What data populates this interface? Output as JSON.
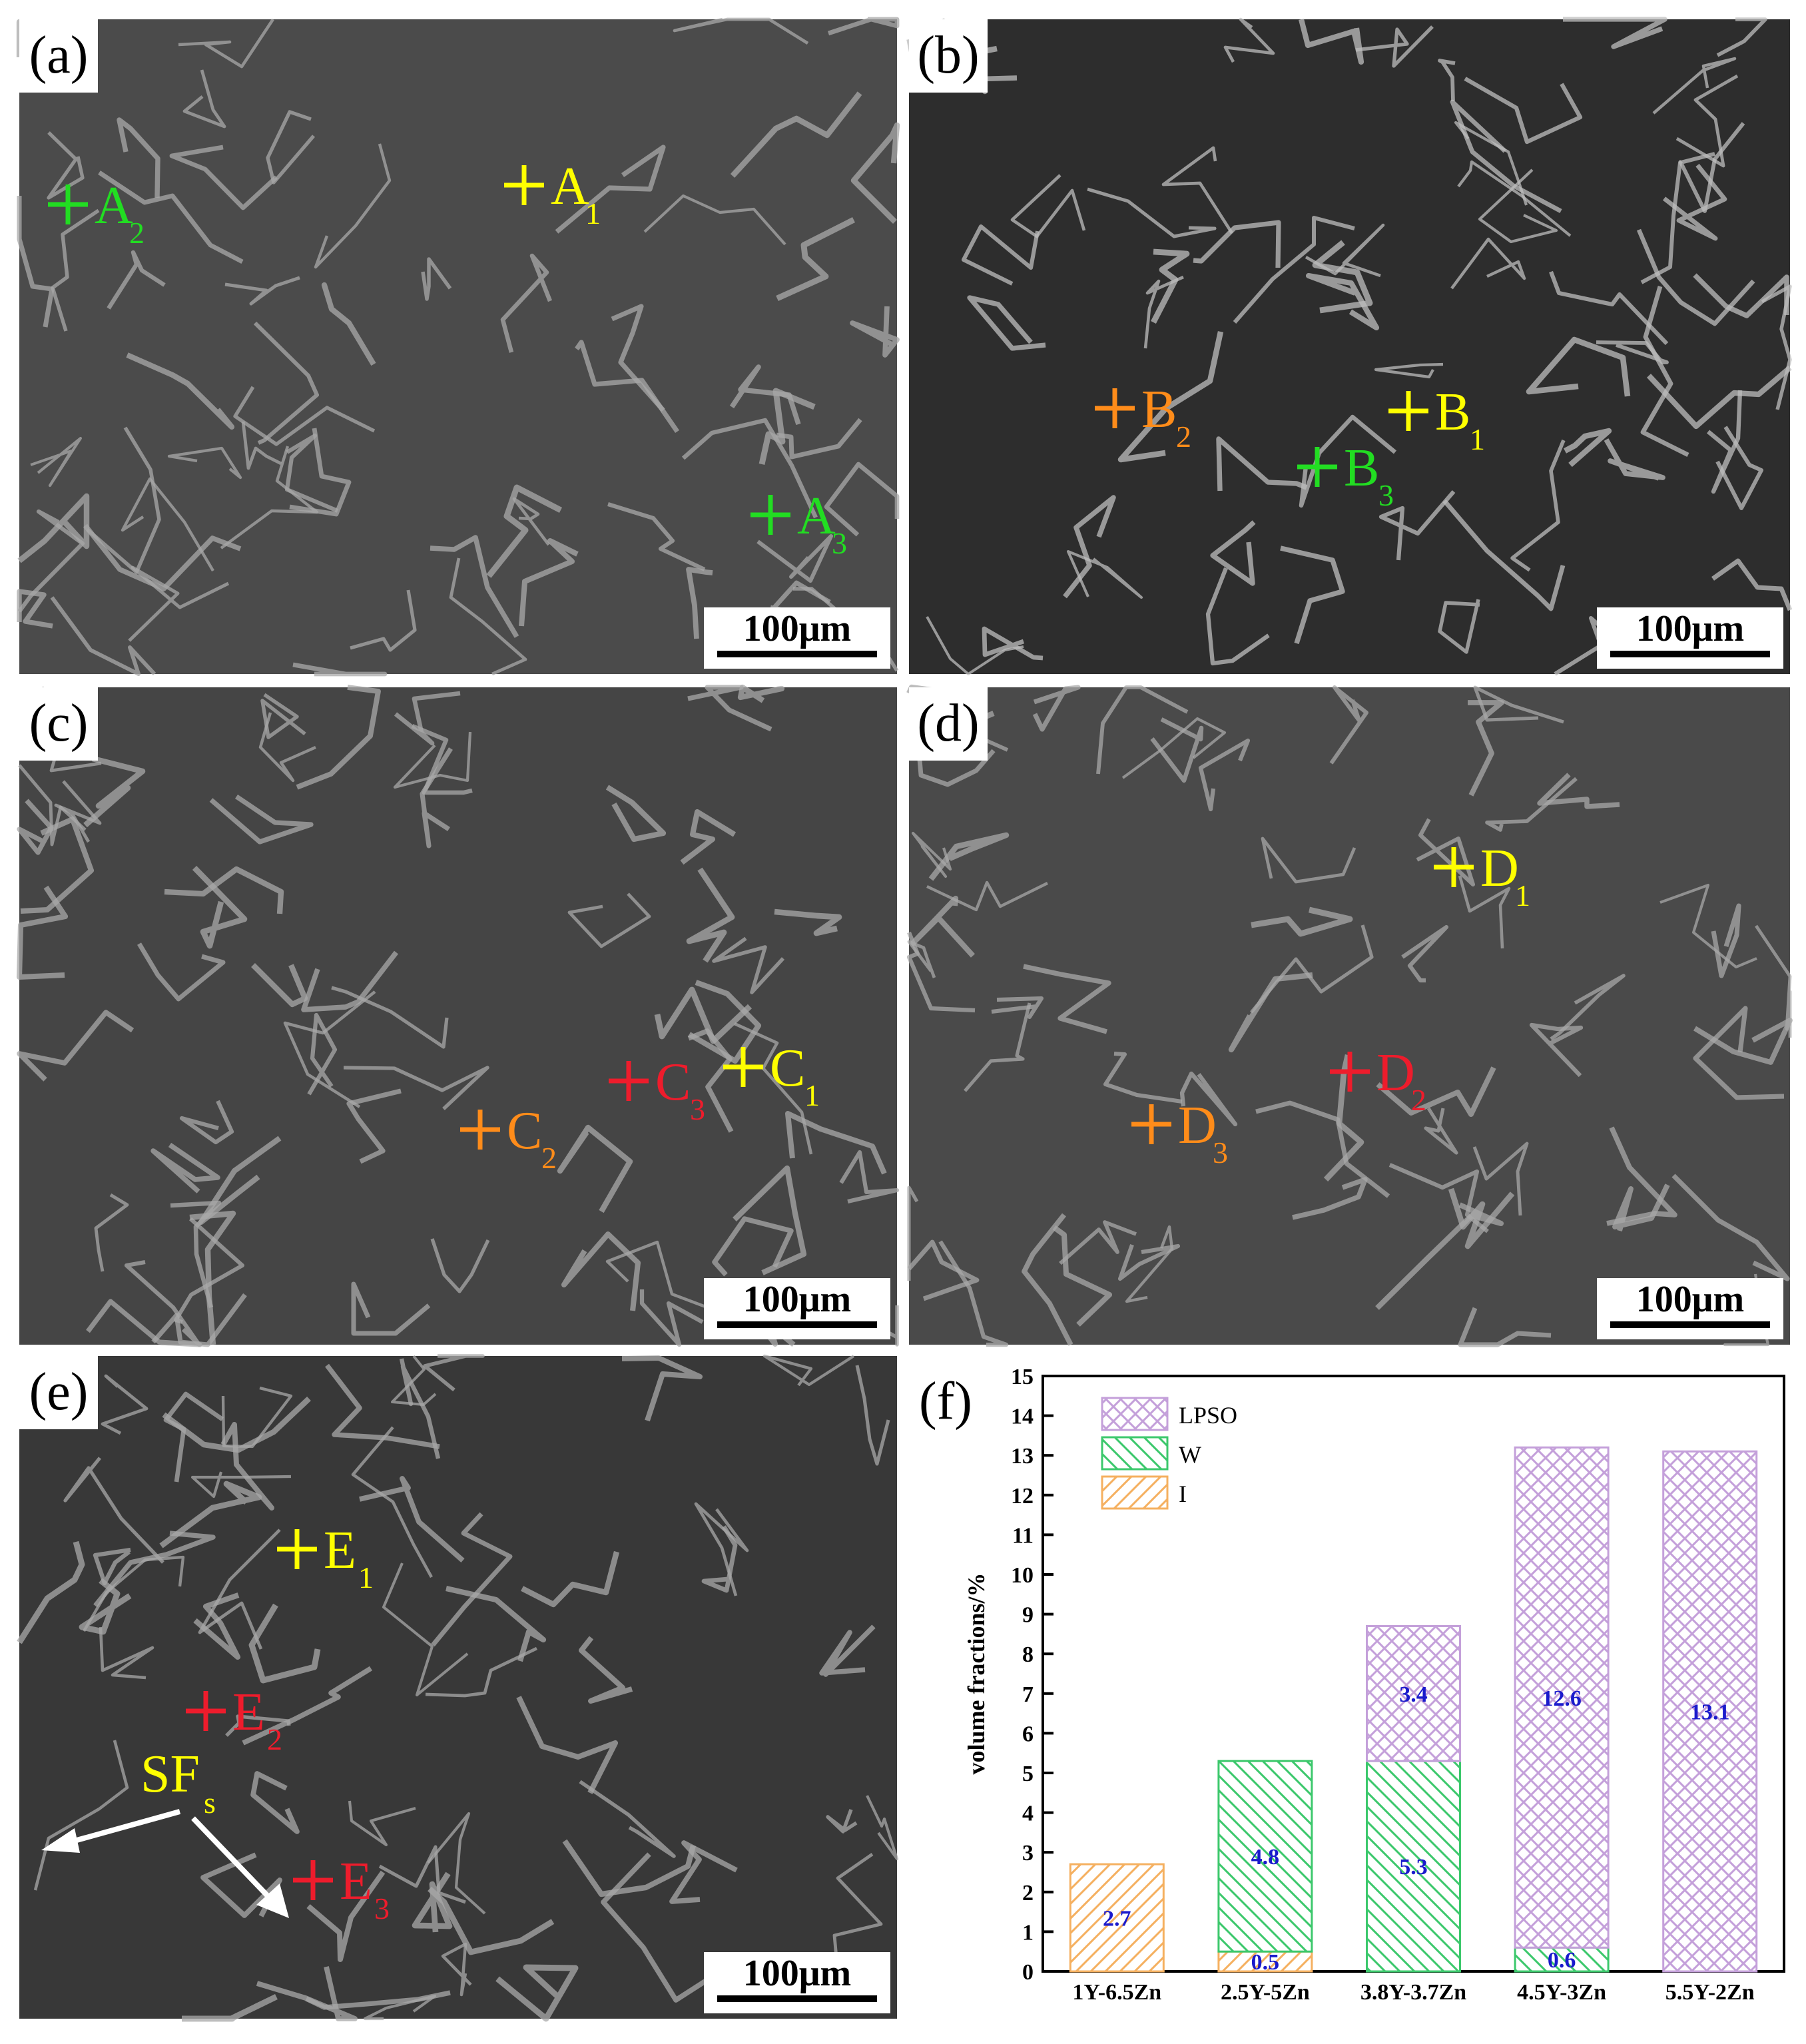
{
  "panels": [
    {
      "label": "(a)",
      "scale_bar": "100μm",
      "points": [
        {
          "letter": "A",
          "sub": "1",
          "color": "#ffff00"
        },
        {
          "letter": "A",
          "sub": "2",
          "color": "#22dd22"
        },
        {
          "letter": "A",
          "sub": "3",
          "color": "#22dd22"
        }
      ]
    },
    {
      "label": "(b)",
      "scale_bar": "100μm",
      "points": [
        {
          "letter": "B",
          "sub": "1",
          "color": "#ffff00"
        },
        {
          "letter": "B",
          "sub": "2",
          "color": "#ff8c1a"
        },
        {
          "letter": "B",
          "sub": "3",
          "color": "#22dd22"
        }
      ]
    },
    {
      "label": "(c)",
      "scale_bar": "100μm",
      "points": [
        {
          "letter": "C",
          "sub": "1",
          "color": "#ffff00"
        },
        {
          "letter": "C",
          "sub": "2",
          "color": "#ff8c1a"
        },
        {
          "letter": "C",
          "sub": "3",
          "color": "#ee1c2c"
        }
      ]
    },
    {
      "label": "(d)",
      "scale_bar": "100μm",
      "points": [
        {
          "letter": "D",
          "sub": "1",
          "color": "#ffff00"
        },
        {
          "letter": "D",
          "sub": "2",
          "color": "#ee1c2c"
        },
        {
          "letter": "D",
          "sub": "3",
          "color": "#ff8c1a"
        }
      ]
    },
    {
      "label": "(e)",
      "scale_bar": "100μm",
      "points": [
        {
          "letter": "E",
          "sub": "1",
          "color": "#ffff00"
        },
        {
          "letter": "E",
          "sub": "2",
          "color": "#ee1c2c"
        },
        {
          "letter": "E",
          "sub": "3",
          "color": "#ee1c2c"
        }
      ],
      "annotation": {
        "text": "SF",
        "sub": "s",
        "color": "#ffff00"
      }
    }
  ],
  "chart_data": {
    "type": "bar",
    "stacked": true,
    "panel_label": "(f)",
    "y_label": "volume fractions/%",
    "categories": [
      "1Y-6.5Zn",
      "2.5Y-5Zn",
      "3.8Y-3.7Zn",
      "4.5Y-3Zn",
      "5.5Y-2Zn"
    ],
    "series": [
      {
        "name": "I",
        "color": "#f5b060",
        "pattern": "forward-hatch",
        "values": [
          2.7,
          0.5,
          null,
          null,
          null
        ]
      },
      {
        "name": "W",
        "color": "#3cc86c",
        "pattern": "back-hatch",
        "values": [
          null,
          4.8,
          5.3,
          0.6,
          null
        ]
      },
      {
        "name": "LPSO",
        "color": "#c4a0da",
        "pattern": "cross-hatch",
        "values": [
          null,
          null,
          3.4,
          12.6,
          13.1
        ]
      }
    ],
    "ylim": [
      0,
      15
    ],
    "yticks": [
      0,
      1,
      2,
      3,
      4,
      5,
      6,
      7,
      8,
      9,
      10,
      11,
      12,
      13,
      14,
      15
    ],
    "legend": "upper-left",
    "value_label_color": "#1a1acc"
  }
}
